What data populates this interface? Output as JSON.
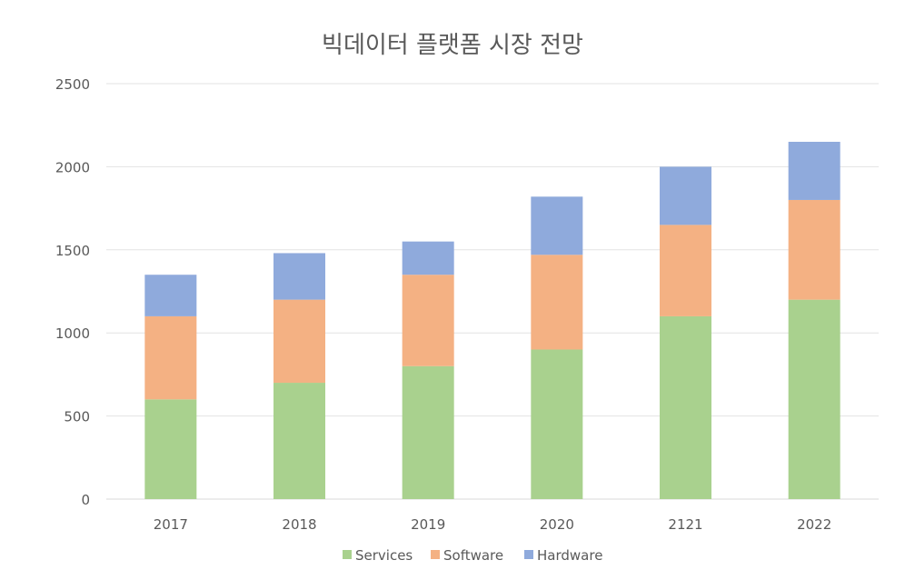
{
  "chart_data": {
    "type": "bar",
    "stacked": true,
    "title": "빅데이터 플랫폼 시장 전망",
    "xlabel": "",
    "ylabel": "",
    "categories": [
      "2017",
      "2018",
      "2019",
      "2020",
      "2121",
      "2022"
    ],
    "series": [
      {
        "name": "Services",
        "color": "#A9D18E",
        "values": [
          600,
          700,
          800,
          900,
          1100,
          1200
        ]
      },
      {
        "name": "Software",
        "color": "#F4B183",
        "values": [
          500,
          500,
          550,
          570,
          550,
          600
        ]
      },
      {
        "name": "Hardware",
        "color": "#8FAADC",
        "values": [
          250,
          280,
          200,
          350,
          350,
          350
        ]
      }
    ],
    "ylim": [
      0,
      2500
    ],
    "yticks": [
      0,
      500,
      1000,
      1500,
      2000,
      2500
    ],
    "grid": true,
    "legend": "bottom"
  }
}
